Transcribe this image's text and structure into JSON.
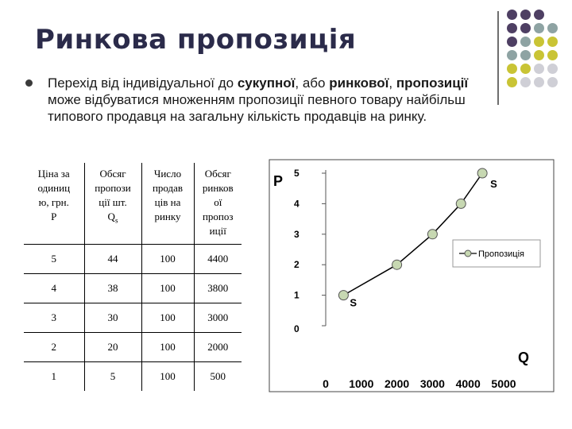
{
  "title": "Ринкова пропозиція",
  "paragraph": {
    "p1": "Перехід від індивідуальної до ",
    "b1": "сукупної",
    "p2": ", або ",
    "b2": "ринкової",
    "p3": ", ",
    "b3": "пропозиції",
    "p4": " може відбуватися множенням пропозиції певного товару найбільш типового продавця на загальну кількість продавців на ринку."
  },
  "colors": {
    "purple": "#4e3f63",
    "teal": "#8ea3a3",
    "olive": "#c9c435",
    "gray": "#cfcfd6"
  },
  "table": {
    "headers": [
      {
        "lines": [
          "Ціна за",
          "одиниц",
          "ю, грн.",
          "P"
        ]
      },
      {
        "lines": [
          "Обсяг",
          "пропози",
          "ції шт.",
          "Qs"
        ]
      },
      {
        "lines": [
          "Число",
          "продав",
          "ців на",
          "ринку"
        ]
      },
      {
        "lines": [
          "Обсяг",
          "ринков",
          "ої",
          "пропоз",
          "иції"
        ]
      }
    ],
    "rows": [
      [
        "5",
        "44",
        "100",
        "4400"
      ],
      [
        "4",
        "38",
        "100",
        "3800"
      ],
      [
        "3",
        "30",
        "100",
        "3000"
      ],
      [
        "2",
        "20",
        "100",
        "2000"
      ],
      [
        "1",
        "5",
        "100",
        "500"
      ]
    ]
  },
  "chart_data": {
    "type": "line",
    "ylabel": "P",
    "xlabel": "Q",
    "xlim": [
      0,
      5000
    ],
    "ylim": [
      0,
      5
    ],
    "xticks": [
      "0",
      "1000",
      "2000",
      "3000",
      "4000",
      "5000"
    ],
    "yticks": [
      "0",
      "1",
      "2",
      "3",
      "4",
      "5"
    ],
    "grid": false,
    "legend_position": "right",
    "series": [
      {
        "name": "Пропозиція",
        "x": [
          500,
          2000,
          3000,
          3800,
          4400
        ],
        "y": [
          1,
          2,
          3,
          4,
          5
        ]
      }
    ],
    "annotations": [
      "S",
      "S"
    ]
  }
}
